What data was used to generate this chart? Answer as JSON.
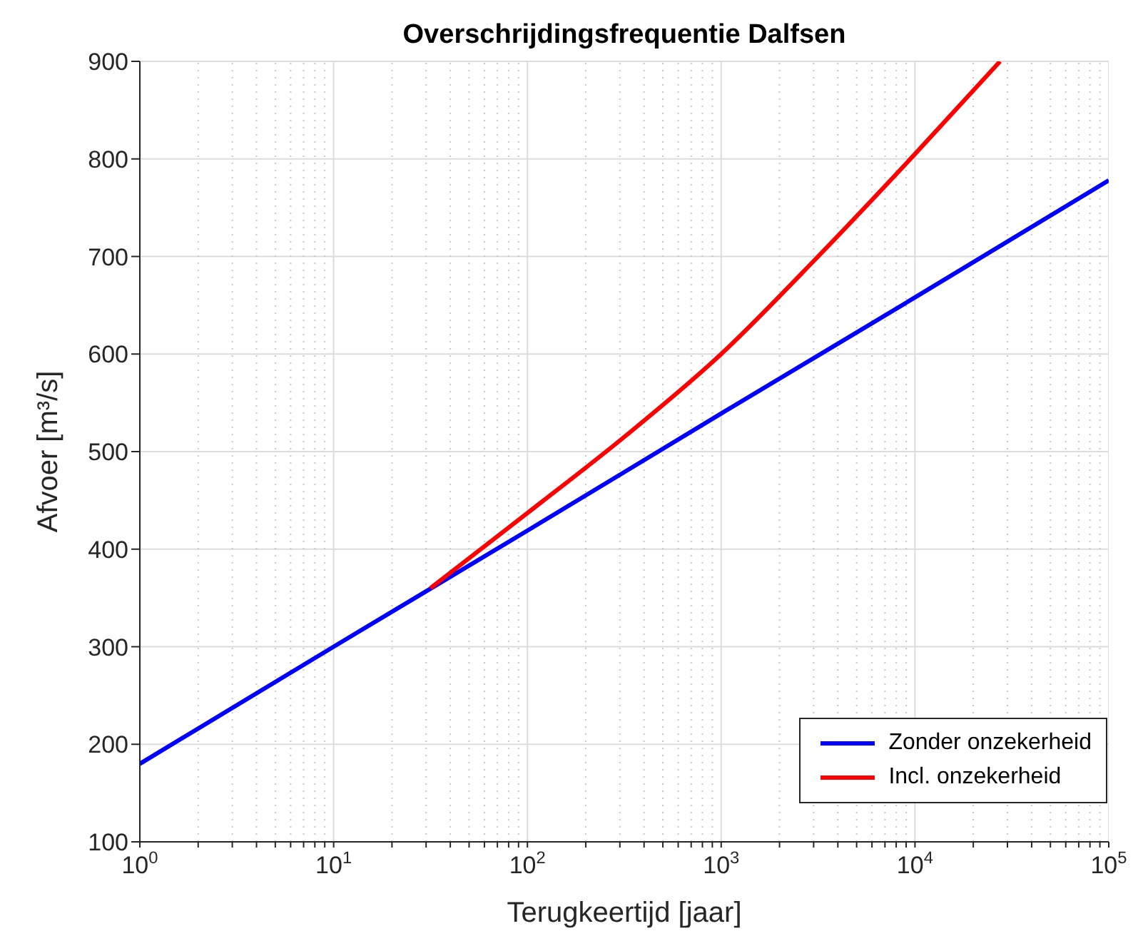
{
  "chart_data": {
    "type": "line",
    "title": "Overschrijdingsfrequentie Dalfsen",
    "xlabel": "Terugkeertijd [jaar]",
    "ylabel": "Afvoer [m³/s]",
    "log": "x",
    "xlim": [
      1,
      100000
    ],
    "xticks": [
      {
        "value": 1,
        "label": "10$^{0}$"
      },
      {
        "value": 2,
        "label": null
      },
      {
        "value": 3,
        "label": null
      },
      {
        "value": 4,
        "label": null
      },
      {
        "value": 5,
        "label": null
      },
      {
        "value": 6,
        "label": null
      },
      {
        "value": 7,
        "label": null
      },
      {
        "value": 8,
        "label": null
      },
      {
        "value": 9,
        "label": null
      },
      {
        "value": 10,
        "label": "10$^{1}$"
      },
      {
        "value": 20,
        "label": null
      },
      {
        "value": 30,
        "label": null
      },
      {
        "value": 40,
        "label": null
      },
      {
        "value": 50,
        "label": null
      },
      {
        "value": 60,
        "label": null
      },
      {
        "value": 70,
        "label": null
      },
      {
        "value": 80,
        "label": null
      },
      {
        "value": 90,
        "label": null
      },
      {
        "value": 100,
        "label": "10$^{2}$"
      },
      {
        "value": 200,
        "label": null
      },
      {
        "value": 300,
        "label": null
      },
      {
        "value": 400,
        "label": null
      },
      {
        "value": 500,
        "label": null
      },
      {
        "value": 600,
        "label": null
      },
      {
        "value": 700,
        "label": null
      },
      {
        "value": 800,
        "label": null
      },
      {
        "value": 900,
        "label": null
      },
      {
        "value": 1000,
        "label": "10$^{3}$"
      },
      {
        "value": 2000,
        "label": null
      },
      {
        "value": 3000,
        "label": null
      },
      {
        "value": 4000,
        "label": null
      },
      {
        "value": 5000,
        "label": null
      },
      {
        "value": 6000,
        "label": null
      },
      {
        "value": 7000,
        "label": null
      },
      {
        "value": 8000,
        "label": null
      },
      {
        "value": 9000,
        "label": null
      },
      {
        "value": 10000,
        "label": "10$^{4}$"
      },
      {
        "value": 20000,
        "label": null
      },
      {
        "value": 30000,
        "label": null
      },
      {
        "value": 40000,
        "label": null
      },
      {
        "value": 50000,
        "label": null
      },
      {
        "value": 60000,
        "label": null
      },
      {
        "value": 70000,
        "label": null
      },
      {
        "value": 80000,
        "label": null
      },
      {
        "value": 90000,
        "label": null
      },
      {
        "value": 100000,
        "label": "10$^{5}$"
      }
    ],
    "ylim": [
      100,
      900
    ],
    "yticks": [
      100,
      200,
      300,
      400,
      500,
      600,
      700,
      800,
      900
    ],
    "grid": true,
    "legend": "bottom right",
    "line_style": "solid",
    "marker": "none",
    "series": [
      {
        "name": "Zonder onzekerheid",
        "color": "#0000ff",
        "x": [
          1,
          10,
          100,
          1000,
          10000,
          100000
        ],
        "values": [
          180,
          300,
          419,
          539,
          658,
          778
        ]
      },
      {
        "name": "Incl. onzekerheid",
        "color": "#ff0000",
        "x": [
          31.6,
          100,
          316,
          1000,
          3162,
          10000,
          27500
        ],
        "values": [
          360,
          437,
          515,
          600,
          700,
          805,
          900
        ]
      }
    ]
  }
}
